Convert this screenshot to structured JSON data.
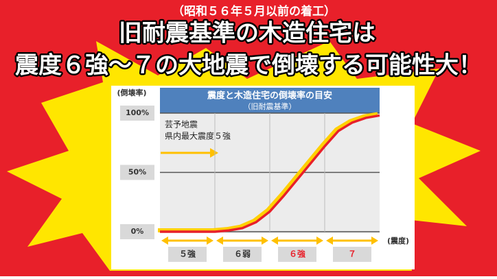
{
  "header": {
    "note": "（昭和５６年５月以前の着工）",
    "title": "旧耐震基準の木造住宅は",
    "subtitle": "震度６強～７の大地震で倒壊する可能性大！"
  },
  "chart_data": {
    "type": "line",
    "title": "震度と木造住宅の倒壊率の目安",
    "subtitle": "（旧耐震基準）",
    "y_label": "(倒壊率)",
    "x_label": "(震度)",
    "categories": [
      "５強",
      "６弱",
      "６強",
      "７"
    ],
    "category_colors": [
      "#333333",
      "#333333",
      "#e8202a",
      "#e8202a"
    ],
    "annotation": [
      "芸予地震",
      "県内最大震度５強"
    ],
    "x": [
      0,
      0.5,
      1,
      1.25,
      1.5,
      1.75,
      2,
      2.25,
      2.5,
      2.75,
      3,
      3.25,
      3.5,
      3.75,
      4
    ],
    "xlim": [
      0,
      4
    ],
    "series": [
      {
        "color": "#e8202a",
        "values": [
          0,
          0,
          0,
          1,
          3,
          8,
          17,
          30,
          44,
          58,
          72,
          85,
          92,
          96,
          98
        ]
      }
    ],
    "ylim": [
      0,
      100
    ],
    "yticks": [
      {
        "value": 0,
        "label": "0%"
      },
      {
        "value": 50,
        "label": "50%"
      },
      {
        "value": 100,
        "label": "100%"
      }
    ],
    "grid": true
  }
}
